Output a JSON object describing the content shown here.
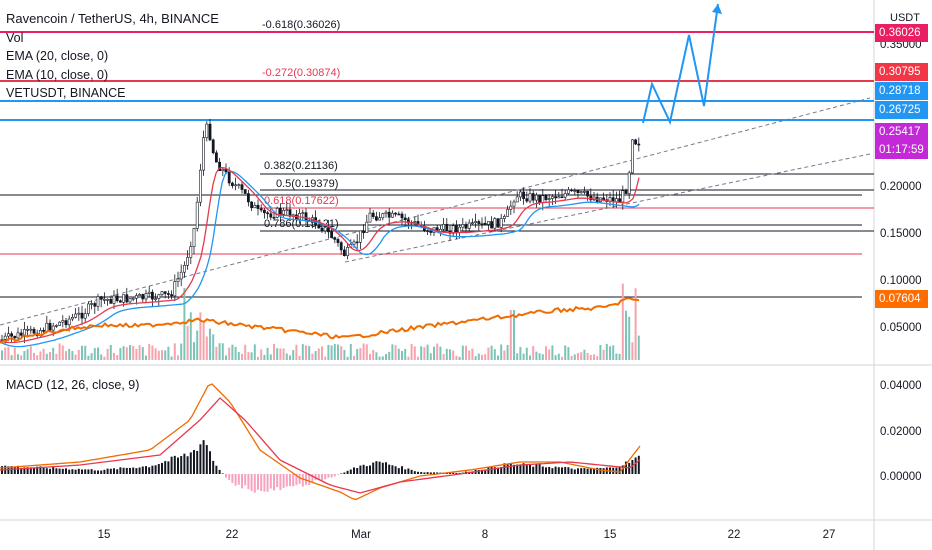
{
  "header": {
    "symbol_line": "Ravencoin / TetherUS, 4h, BINANCE",
    "indicators": [
      "Vol",
      "EMA (20, close, 0)",
      "EMA (10, close, 0)",
      "VETUSDT, BINANCE"
    ],
    "currency": "USDT"
  },
  "macd": {
    "label": "MACD (12, 26, close, 9)"
  },
  "fib_levels": [
    {
      "label": "-0.618(0.36026)",
      "color": "#131722"
    },
    {
      "label": "-0.272(0.30874)",
      "color": "#e53950"
    },
    {
      "label": "0.382(0.21136)",
      "color": "#131722"
    },
    {
      "label": "0.5(0.19379)",
      "color": "#131722"
    },
    {
      "label": "0.618(0.17622)",
      "color": "#e53950"
    },
    {
      "label": "0.786(0.15121)",
      "color": "#131722"
    }
  ],
  "price_tags": [
    {
      "text": "0.36026",
      "color": "#e91e63"
    },
    {
      "text": "0.30795",
      "color": "#f23645"
    },
    {
      "text": "0.28718",
      "color": "#2196f3"
    },
    {
      "text": "0.26725",
      "color": "#2196f3"
    },
    {
      "text": "0.25417",
      "color": "#c429d8"
    },
    {
      "text": "01:17:59",
      "color": "#c429d8"
    },
    {
      "text": "0.07604",
      "color": "#ff6d00"
    }
  ],
  "y_axis_main": [
    "0.35000",
    "0.20000",
    "0.15000",
    "0.10000",
    "0.05000"
  ],
  "y_axis_macd": [
    "0.04000",
    "0.02000",
    "0.00000"
  ],
  "x_axis": [
    "15",
    "22",
    "Mar",
    "8",
    "15",
    "22",
    "27"
  ],
  "colors": {
    "ema_fast": "#e53950",
    "ema_slow": "#2196f3",
    "vet_line": "#ef6c00",
    "projection": "#2196f3",
    "up_volume": "#7cc4b8",
    "down_volume": "#f5a3ad",
    "macd_line": "#ef6c00",
    "signal_line": "#e53950",
    "hist_pos": "#131722",
    "hist_neg": "#f5a3c0"
  }
}
